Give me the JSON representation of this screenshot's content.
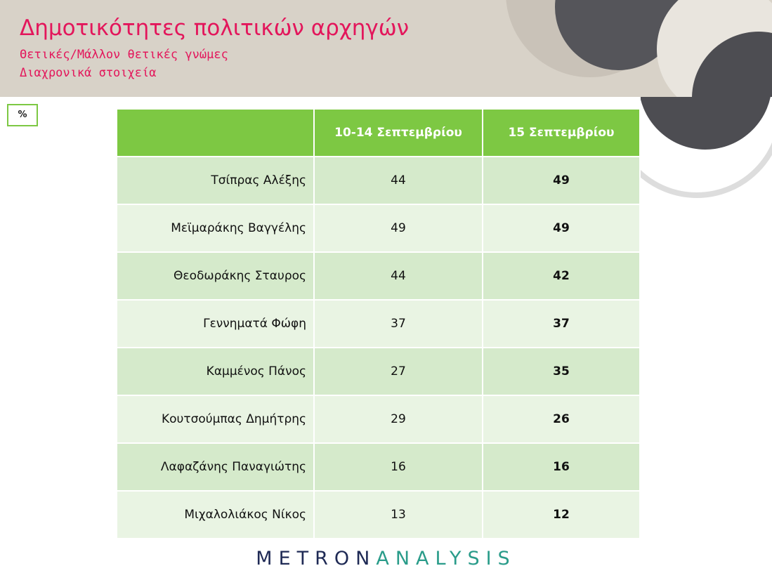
{
  "header": {
    "title": "Δημοτικότητες πολιτικών αρχηγών",
    "subtitle": "Θετικές/Μάλλον θετικές γνώμες",
    "subtitle2": "Διαχρονικά στοιχεία"
  },
  "unit": "%",
  "table": {
    "columns": [
      "10-14 Σεπτεμβρίου",
      "15 Σεπτεμβρίου"
    ],
    "rows": [
      [
        "Τσίπρας Αλέξης",
        44,
        49
      ],
      [
        "Μεϊμαράκης Βαγγέλης",
        49,
        49
      ],
      [
        "Θεοδωράκης Σταυρος",
        44,
        42
      ],
      [
        "Γεννηματά Φώφη",
        37,
        37
      ],
      [
        "Καμμένος Πάνος",
        27,
        35
      ],
      [
        "Κουτσούμπας Δημήτρης",
        29,
        26
      ],
      [
        "Λαφαζάνης Παναγιώτης",
        16,
        16
      ],
      [
        "Μιχαλολιάκος Νίκος",
        13,
        12
      ]
    ]
  },
  "logo": {
    "part1": "METRON",
    "part2": "ANALYSIS"
  }
}
